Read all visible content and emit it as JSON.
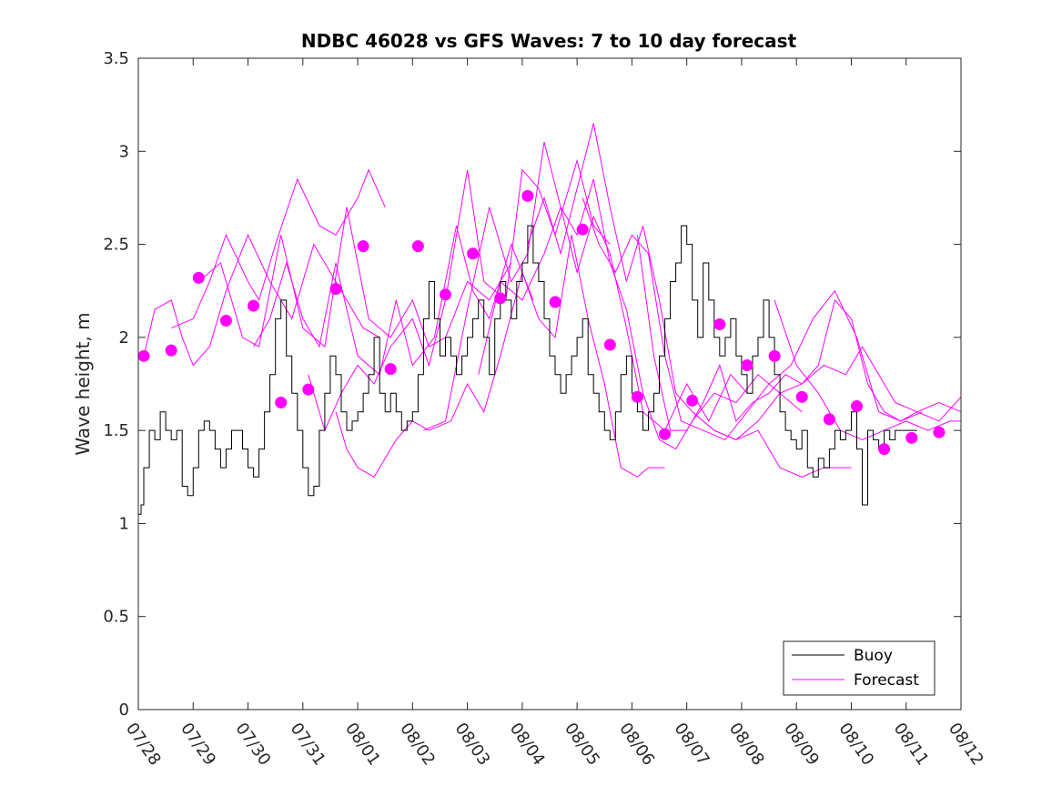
{
  "chart_data": {
    "type": "line",
    "title": "NDBC 46028 vs GFS Waves: 7 to 10 day forecast",
    "xlabel": "",
    "ylabel": "Wave height, m",
    "ylim": [
      0,
      3.5
    ],
    "xlim": [
      0,
      15
    ],
    "yticks": [
      "0",
      "0.5",
      "1",
      "1.5",
      "2",
      "2.5",
      "3",
      "3.5"
    ],
    "xticks": [
      "07/28",
      "07/29",
      "07/30",
      "07/31",
      "08/01",
      "08/02",
      "08/03",
      "08/04",
      "08/05",
      "08/06",
      "08/07",
      "08/08",
      "08/09",
      "08/10",
      "08/11",
      "08/12"
    ],
    "legend": {
      "placement": "bottom-right",
      "entries": [
        "Buoy",
        "Forecast"
      ]
    },
    "colors": {
      "buoy": "#000000",
      "forecast": "#ff00ff"
    },
    "series": [
      {
        "name": "Buoy",
        "x": [
          0,
          0.05,
          0.1,
          0.2,
          0.3,
          0.4,
          0.5,
          0.6,
          0.7,
          0.8,
          0.9,
          1.0,
          1.1,
          1.2,
          1.3,
          1.4,
          1.5,
          1.6,
          1.7,
          1.8,
          1.9,
          2.0,
          2.1,
          2.2,
          2.3,
          2.4,
          2.5,
          2.6,
          2.7,
          2.8,
          2.9,
          3.0,
          3.1,
          3.2,
          3.3,
          3.4,
          3.5,
          3.6,
          3.7,
          3.8,
          3.9,
          4.0,
          4.1,
          4.2,
          4.3,
          4.4,
          4.5,
          4.6,
          4.7,
          4.8,
          4.9,
          5.0,
          5.1,
          5.2,
          5.3,
          5.4,
          5.5,
          5.6,
          5.7,
          5.8,
          5.9,
          6.0,
          6.1,
          6.2,
          6.3,
          6.4,
          6.5,
          6.6,
          6.7,
          6.8,
          6.9,
          7.0,
          7.1,
          7.2,
          7.3,
          7.4,
          7.5,
          7.6,
          7.7,
          7.8,
          7.9,
          8.0,
          8.1,
          8.2,
          8.3,
          8.4,
          8.5,
          8.6,
          8.7,
          8.8,
          8.9,
          9.0,
          9.1,
          9.2,
          9.3,
          9.4,
          9.5,
          9.6,
          9.7,
          9.8,
          9.9,
          10.0,
          10.1,
          10.2,
          10.3,
          10.4,
          10.5,
          10.6,
          10.7,
          10.8,
          10.9,
          11.0,
          11.1,
          11.2,
          11.3,
          11.4,
          11.5,
          11.6,
          11.7,
          11.8,
          11.9,
          12.0,
          12.1,
          12.2,
          12.3,
          12.4,
          12.5,
          12.6,
          12.7,
          12.8,
          12.9,
          13.0,
          13.1,
          13.2,
          13.3,
          13.4,
          13.5,
          13.6,
          13.7,
          13.8,
          13.9,
          14.0,
          14.1,
          14.2
        ],
        "values": [
          1.05,
          1.1,
          1.3,
          1.5,
          1.45,
          1.6,
          1.5,
          1.45,
          1.5,
          1.2,
          1.15,
          1.3,
          1.5,
          1.55,
          1.5,
          1.4,
          1.3,
          1.4,
          1.5,
          1.5,
          1.4,
          1.3,
          1.25,
          1.4,
          1.6,
          1.8,
          2.1,
          2.2,
          1.9,
          1.7,
          1.5,
          1.3,
          1.15,
          1.2,
          1.5,
          1.7,
          1.9,
          1.8,
          1.6,
          1.5,
          1.55,
          1.6,
          1.7,
          1.8,
          2.0,
          1.7,
          1.6,
          1.7,
          1.6,
          1.5,
          1.55,
          1.6,
          1.8,
          2.1,
          2.3,
          2.1,
          1.9,
          2.0,
          1.9,
          1.8,
          1.9,
          2.0,
          2.1,
          2.2,
          2.0,
          1.8,
          2.1,
          2.3,
          2.2,
          2.1,
          2.3,
          2.4,
          2.6,
          2.4,
          2.3,
          2.1,
          1.9,
          1.8,
          1.7,
          1.8,
          1.9,
          2.0,
          2.1,
          1.8,
          1.7,
          1.6,
          1.5,
          1.45,
          1.6,
          1.8,
          1.9,
          1.7,
          1.6,
          1.5,
          1.6,
          1.7,
          1.9,
          2.1,
          2.3,
          2.4,
          2.6,
          2.5,
          2.2,
          2.0,
          2.4,
          2.2,
          2.0,
          1.9,
          2.0,
          2.1,
          1.9,
          1.8,
          1.7,
          1.9,
          2.0,
          2.2,
          2.0,
          1.8,
          1.6,
          1.5,
          1.45,
          1.4,
          1.5,
          1.3,
          1.25,
          1.35,
          1.3,
          1.4,
          1.5,
          1.45,
          1.5,
          1.6,
          1.4,
          1.1,
          1.5,
          1.45,
          1.4,
          1.5,
          1.45,
          1.5,
          1.5,
          1.5,
          1.5,
          1.5
        ]
      },
      {
        "name": "Forecast",
        "lines": [
          {
            "x": [
              0.1,
              0.3,
              0.6,
              0.8,
              1.0,
              1.3,
              1.6,
              2.0,
              2.4,
              2.8,
              3.2,
              3.5,
              3.8,
              4.1,
              4.4
            ],
            "values": [
              1.9,
              2.15,
              2.2,
              2.0,
              1.85,
              1.95,
              2.25,
              2.55,
              2.3,
              2.1,
              2.5,
              2.35,
              2.2,
              2.05,
              2.0
            ]
          },
          {
            "x": [
              0.6,
              1.0,
              1.3,
              1.6,
              2.0,
              2.2,
              2.5,
              2.9,
              3.3,
              3.6,
              4.0,
              4.2,
              4.5
            ],
            "values": [
              2.05,
              2.1,
              2.3,
              2.55,
              2.3,
              2.2,
              2.5,
              2.85,
              2.6,
              2.55,
              2.75,
              2.9,
              2.7
            ]
          },
          {
            "x": [
              1.1,
              1.5,
              1.9,
              2.2,
              2.6,
              3.0,
              3.4,
              3.8,
              4.2,
              4.6,
              5.0,
              5.3,
              5.6,
              6.0,
              6.4,
              6.8
            ],
            "values": [
              2.3,
              2.4,
              2.0,
              1.95,
              2.55,
              2.05,
              1.95,
              2.7,
              2.1,
              2.0,
              2.2,
              1.95,
              2.0,
              2.3,
              2.2,
              2.4
            ]
          },
          {
            "x": [
              2.1,
              2.4,
              2.7,
              3.0,
              3.3,
              3.6,
              4.0,
              4.4,
              4.7,
              5.0,
              5.4,
              5.8,
              6.1,
              6.4,
              6.8,
              7.2
            ],
            "values": [
              1.95,
              2.1,
              2.4,
              2.1,
              1.95,
              2.4,
              1.9,
              1.8,
              2.2,
              1.85,
              2.0,
              2.6,
              2.25,
              2.1,
              2.5,
              2.2
            ]
          },
          {
            "x": [
              3.1,
              3.4,
              3.7,
              4.0,
              4.3,
              4.6,
              5.0,
              5.3,
              5.6,
              6.0,
              6.3,
              6.7,
              7.0,
              7.3,
              7.6,
              8.0,
              8.3,
              8.6
            ],
            "values": [
              1.8,
              1.5,
              1.7,
              1.85,
              1.75,
              1.95,
              2.1,
              1.85,
              2.2,
              2.9,
              2.3,
              2.2,
              2.9,
              2.8,
              2.55,
              2.95,
              2.6,
              2.5
            ]
          },
          {
            "x": [
              3.6,
              3.8,
              4.0,
              4.3,
              4.7,
              5.0,
              5.3,
              5.7,
              6.0,
              6.3,
              6.6,
              7.0,
              7.3,
              7.6,
              7.9,
              8.2,
              8.5,
              8.8,
              9.1,
              9.3,
              9.6
            ],
            "values": [
              1.6,
              1.4,
              1.3,
              1.25,
              1.45,
              1.55,
              1.5,
              1.55,
              1.75,
              1.6,
              1.9,
              2.35,
              2.1,
              2.0,
              2.55,
              2.1,
              1.75,
              1.3,
              1.25,
              1.3,
              1.3
            ]
          },
          {
            "x": [
              5.2,
              5.6,
              6.0,
              6.4,
              6.8,
              7.1,
              7.4,
              7.7,
              8.0,
              8.3,
              8.6,
              8.9,
              9.2,
              9.6,
              10.0,
              10.4,
              10.8,
              11.1
            ],
            "values": [
              1.5,
              1.55,
              2.15,
              2.7,
              2.3,
              2.45,
              3.05,
              2.7,
              2.35,
              2.65,
              2.45,
              2.05,
              1.6,
              1.5,
              1.75,
              1.55,
              1.8,
              1.7
            ]
          },
          {
            "x": [
              6.2,
              6.6,
              7.0,
              7.4,
              7.7,
              8.0,
              8.3,
              8.6,
              8.9,
              9.2,
              9.5,
              9.8,
              10.1,
              10.5,
              10.9,
              11.3,
              11.7,
              12.1
            ],
            "values": [
              1.8,
              2.3,
              2.2,
              2.45,
              2.7,
              2.55,
              2.85,
              2.4,
              2.15,
              1.7,
              1.45,
              1.4,
              1.55,
              1.7,
              1.65,
              1.8,
              1.7,
              1.6
            ]
          },
          {
            "x": [
              7.1,
              7.4,
              7.7,
              8.0,
              8.3,
              8.6,
              8.9,
              9.2,
              9.5,
              9.8,
              10.1,
              10.5,
              10.9,
              11.3,
              11.7,
              12.1,
              12.5,
              13.0
            ],
            "values": [
              2.5,
              2.75,
              2.45,
              2.8,
              3.15,
              2.7,
              2.3,
              2.6,
              2.2,
              1.7,
              1.6,
              1.5,
              1.45,
              1.5,
              1.3,
              1.25,
              1.3,
              1.3
            ]
          },
          {
            "x": [
              8.1,
              8.4,
              8.7,
              9.0,
              9.3,
              9.6,
              9.9,
              10.3,
              10.7,
              11.1,
              11.5,
              11.9,
              12.3,
              12.7,
              13.1,
              13.5,
              13.9,
              14.3
            ],
            "values": [
              2.75,
              2.5,
              2.35,
              2.55,
              2.45,
              1.9,
              1.55,
              1.5,
              1.45,
              1.6,
              1.75,
              1.85,
              2.1,
              2.25,
              2.0,
              1.6,
              1.55,
              1.6
            ]
          },
          {
            "x": [
              9.1,
              9.4,
              9.7,
              10.0,
              10.3,
              10.6,
              10.9,
              11.2,
              11.5,
              11.8,
              12.1,
              12.4,
              12.7,
              13.0,
              13.3,
              13.6,
              13.9,
              14.2,
              14.6,
              15.0
            ],
            "values": [
              2.55,
              1.9,
              1.5,
              1.5,
              1.65,
              1.85,
              1.55,
              1.65,
              1.7,
              1.8,
              1.75,
              1.85,
              2.2,
              2.1,
              1.75,
              1.6,
              1.55,
              1.6,
              1.65,
              1.6
            ]
          },
          {
            "x": [
              10.1,
              10.5,
              10.9,
              11.3,
              11.7,
              12.1,
              12.5,
              12.9,
              13.2,
              13.5,
              13.8,
              14.2,
              14.6,
              15.0
            ],
            "values": [
              1.6,
              1.5,
              1.45,
              1.55,
              1.7,
              1.75,
              1.85,
              1.8,
              1.95,
              1.8,
              1.65,
              1.6,
              1.55,
              1.68
            ]
          },
          {
            "x": [
              11.6,
              12.0,
              12.4,
              12.8,
              13.2,
              13.6,
              14.0,
              14.4,
              14.8,
              15.0
            ],
            "values": [
              2.2,
              1.85,
              1.7,
              1.5,
              1.45,
              1.5,
              1.55,
              1.5,
              1.55,
              1.55
            ]
          }
        ]
      }
    ],
    "markers": {
      "x": [
        0.1,
        0.6,
        1.1,
        1.6,
        2.1,
        2.6,
        3.1,
        3.6,
        4.1,
        4.6,
        5.1,
        5.6,
        6.1,
        6.6,
        7.1,
        7.6,
        8.1,
        8.6,
        9.1,
        9.6,
        10.1,
        10.6,
        11.1,
        11.6,
        12.1,
        12.6,
        13.1,
        13.6,
        14.1,
        14.6
      ],
      "values": [
        1.9,
        1.93,
        2.32,
        2.09,
        2.17,
        1.65,
        1.72,
        2.26,
        2.49,
        1.83,
        2.49,
        2.23,
        2.45,
        2.21,
        2.76,
        2.19,
        2.58,
        1.96,
        1.68,
        1.48,
        1.66,
        2.07,
        1.85,
        1.9,
        1.68,
        1.56,
        1.63,
        1.4,
        1.46,
        1.49
      ]
    }
  }
}
